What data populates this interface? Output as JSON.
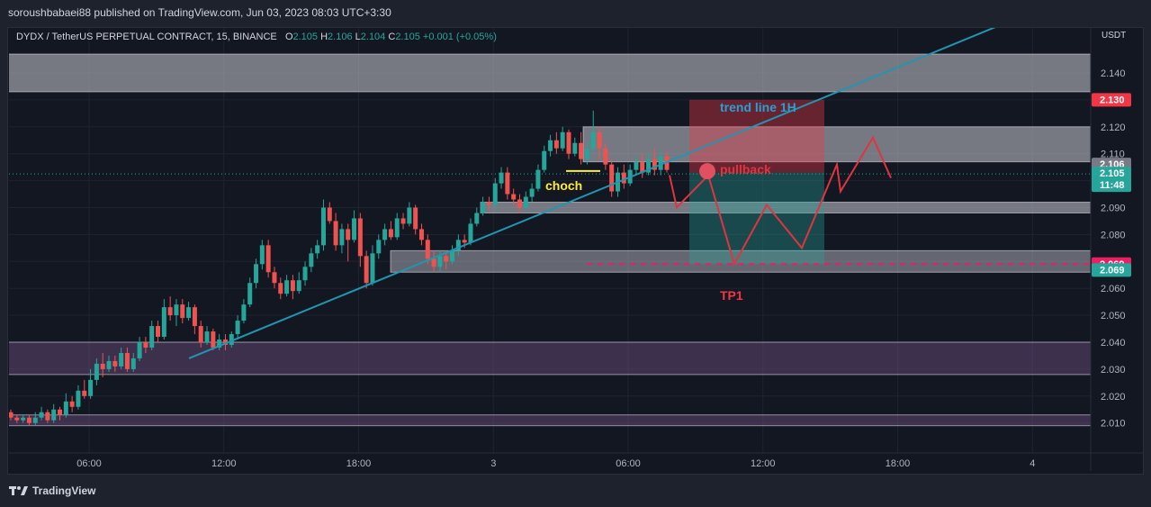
{
  "header": {
    "publish_line": "soroushbabaei88 published on TradingView.com, Jun 03, 2023 08:03 UTC+3:30"
  },
  "legend": {
    "symbol": "DYDX / TetherUS PERPETUAL CONTRACT, 15, BINANCE",
    "o_label": "O",
    "o_value": "2.105",
    "h_label": "H",
    "h_value": "2.106",
    "l_label": "L",
    "l_value": "2.104",
    "c_label": "C",
    "c_value": "2.105",
    "change": "+0.001 (+0.05%)"
  },
  "footer": {
    "brand": "TradingView"
  },
  "chart_data": {
    "type": "candlestick",
    "currency": "USDT",
    "y_range": [
      2.009,
      2.152
    ],
    "y_ticks": [
      "2.140",
      "2.120",
      "2.110",
      "2.100",
      "2.090",
      "2.080",
      "2.060",
      "2.050",
      "2.040",
      "2.030",
      "2.020",
      "2.010"
    ],
    "x_ticks": [
      {
        "label": "06:00",
        "t": 0.0
      },
      {
        "label": "12:00",
        "t": 6.0
      },
      {
        "label": "18:00",
        "t": 12.0
      },
      {
        "label": "3",
        "t": 18.0
      },
      {
        "label": "06:00",
        "t": 24.0
      },
      {
        "label": "12:00",
        "t": 30.0
      },
      {
        "label": "18:00",
        "t": 36.0
      },
      {
        "label": "4",
        "t": 42.0
      }
    ],
    "price_badges": [
      {
        "label": "2.130",
        "price": 2.13,
        "color": "#f23645"
      },
      {
        "label": "2.106",
        "price": 2.106,
        "color": "#787b86"
      },
      {
        "label": "2.105",
        "price": 2.1025,
        "color": "#26a69a",
        "sub": "11:48"
      },
      {
        "label": "2.069",
        "price": 2.069,
        "color": "#e91e63"
      },
      {
        "label": "2.069",
        "price": 2.0668,
        "color": "#26a69a"
      }
    ],
    "candles": [
      [
        2.014,
        2.012,
        2.015,
        2.011
      ],
      [
        2.012,
        2.011,
        2.013,
        2.01
      ],
      [
        2.011,
        2.012,
        2.013,
        2.01
      ],
      [
        2.012,
        2.01,
        2.013,
        2.009
      ],
      [
        2.01,
        2.012,
        2.014,
        2.009
      ],
      [
        2.012,
        2.014,
        2.016,
        2.011
      ],
      [
        2.014,
        2.011,
        2.015,
        2.01
      ],
      [
        2.011,
        2.015,
        2.017,
        2.01
      ],
      [
        2.015,
        2.013,
        2.016,
        2.011
      ],
      [
        2.013,
        2.018,
        2.021,
        2.012
      ],
      [
        2.018,
        2.016,
        2.02,
        2.014
      ],
      [
        2.016,
        2.022,
        2.024,
        2.015
      ],
      [
        2.022,
        2.02,
        2.026,
        2.019
      ],
      [
        2.02,
        2.026,
        2.03,
        2.019
      ],
      [
        2.026,
        2.032,
        2.034,
        2.024
      ],
      [
        2.032,
        2.03,
        2.036,
        2.027
      ],
      [
        2.03,
        2.033,
        2.035,
        2.029
      ],
      [
        2.033,
        2.031,
        2.035,
        2.029
      ],
      [
        2.031,
        2.036,
        2.038,
        2.03
      ],
      [
        2.036,
        2.03,
        2.038,
        2.029
      ],
      [
        2.03,
        2.034,
        2.036,
        2.029
      ],
      [
        2.034,
        2.04,
        2.042,
        2.033
      ],
      [
        2.04,
        2.038,
        2.042,
        2.036
      ],
      [
        2.038,
        2.046,
        2.048,
        2.037
      ],
      [
        2.046,
        2.042,
        2.048,
        2.04
      ],
      [
        2.042,
        2.053,
        2.056,
        2.041
      ],
      [
        2.053,
        2.05,
        2.057,
        2.048
      ],
      [
        2.05,
        2.054,
        2.056,
        2.046
      ],
      [
        2.054,
        2.049,
        2.056,
        2.047
      ],
      [
        2.049,
        2.053,
        2.055,
        2.048
      ],
      [
        2.053,
        2.046,
        2.054,
        2.043
      ],
      [
        2.046,
        2.04,
        2.048,
        2.038
      ],
      [
        2.04,
        2.044,
        2.046,
        2.039
      ],
      [
        2.044,
        2.038,
        2.045,
        2.037
      ],
      [
        2.038,
        2.041,
        2.043,
        2.037
      ],
      [
        2.041,
        2.039,
        2.043,
        2.037
      ],
      [
        2.039,
        2.043,
        2.044,
        2.038
      ],
      [
        2.043,
        2.048,
        2.05,
        2.041
      ],
      [
        2.048,
        2.054,
        2.056,
        2.047
      ],
      [
        2.054,
        2.062,
        2.064,
        2.053
      ],
      [
        2.062,
        2.069,
        2.071,
        2.06
      ],
      [
        2.069,
        2.076,
        2.078,
        2.067
      ],
      [
        2.076,
        2.066,
        2.078,
        2.064
      ],
      [
        2.066,
        2.062,
        2.068,
        2.06
      ],
      [
        2.062,
        2.058,
        2.064,
        2.056
      ],
      [
        2.058,
        2.063,
        2.065,
        2.057
      ],
      [
        2.063,
        2.059,
        2.065,
        2.056
      ],
      [
        2.059,
        2.063,
        2.066,
        2.058
      ],
      [
        2.063,
        2.068,
        2.07,
        2.061
      ],
      [
        2.068,
        2.073,
        2.075,
        2.066
      ],
      [
        2.073,
        2.076,
        2.078,
        2.071
      ],
      [
        2.076,
        2.09,
        2.093,
        2.074
      ],
      [
        2.09,
        2.085,
        2.092,
        2.084
      ],
      [
        2.085,
        2.076,
        2.088,
        2.074
      ],
      [
        2.076,
        2.082,
        2.084,
        2.073
      ],
      [
        2.082,
        2.078,
        2.084,
        2.07
      ],
      [
        2.078,
        2.086,
        2.089,
        2.077
      ],
      [
        2.086,
        2.072,
        2.088,
        2.068
      ],
      [
        2.072,
        2.062,
        2.074,
        2.06
      ],
      [
        2.062,
        2.073,
        2.076,
        2.061
      ],
      [
        2.073,
        2.078,
        2.08,
        2.071
      ],
      [
        2.078,
        2.082,
        2.084,
        2.076
      ],
      [
        2.082,
        2.079,
        2.085,
        2.078
      ],
      [
        2.079,
        2.086,
        2.088,
        2.078
      ],
      [
        2.086,
        2.084,
        2.088,
        2.082
      ],
      [
        2.084,
        2.09,
        2.092,
        2.083
      ],
      [
        2.09,
        2.082,
        2.091,
        2.08
      ],
      [
        2.082,
        2.078,
        2.084,
        2.076
      ],
      [
        2.078,
        2.071,
        2.08,
        2.069
      ],
      [
        2.071,
        2.068,
        2.074,
        2.066
      ],
      [
        2.068,
        2.072,
        2.074,
        2.066
      ],
      [
        2.072,
        2.07,
        2.074,
        2.067
      ],
      [
        2.07,
        2.074,
        2.076,
        2.069
      ],
      [
        2.074,
        2.078,
        2.08,
        2.072
      ],
      [
        2.078,
        2.077,
        2.08,
        2.075
      ],
      [
        2.077,
        2.084,
        2.086,
        2.076
      ],
      [
        2.084,
        2.088,
        2.09,
        2.083
      ],
      [
        2.088,
        2.092,
        2.094,
        2.087
      ],
      [
        2.092,
        2.091,
        2.094,
        2.089
      ],
      [
        2.091,
        2.099,
        2.101,
        2.089
      ],
      [
        2.099,
        2.103,
        2.105,
        2.097
      ],
      [
        2.103,
        2.095,
        2.105,
        2.093
      ],
      [
        2.095,
        2.093,
        2.097,
        2.091
      ],
      [
        2.093,
        2.09,
        2.095,
        2.088
      ],
      [
        2.09,
        2.094,
        2.096,
        2.089
      ],
      [
        2.094,
        2.097,
        2.099,
        2.092
      ],
      [
        2.097,
        2.104,
        2.106,
        2.096
      ],
      [
        2.104,
        2.111,
        2.113,
        2.103
      ],
      [
        2.111,
        2.115,
        2.117,
        2.109
      ],
      [
        2.115,
        2.112,
        2.118,
        2.11
      ],
      [
        2.112,
        2.118,
        2.12,
        2.111
      ],
      [
        2.118,
        2.11,
        2.119,
        2.108
      ],
      [
        2.11,
        2.114,
        2.116,
        2.109
      ],
      [
        2.114,
        2.108,
        2.118,
        2.106
      ],
      [
        2.108,
        2.112,
        2.115,
        2.106
      ],
      [
        2.112,
        2.118,
        2.126,
        2.11
      ],
      [
        2.118,
        2.112,
        2.12,
        2.108
      ],
      [
        2.112,
        2.106,
        2.114,
        2.104
      ],
      [
        2.106,
        2.096,
        2.108,
        2.094
      ],
      [
        2.096,
        2.103,
        2.105,
        2.094
      ],
      [
        2.103,
        2.099,
        2.106,
        2.097
      ],
      [
        2.099,
        2.104,
        2.106,
        2.098
      ],
      [
        2.104,
        2.107,
        2.109,
        2.102
      ],
      [
        2.107,
        2.103,
        2.11,
        2.101
      ],
      [
        2.103,
        2.108,
        2.11,
        2.102
      ],
      [
        2.108,
        2.104,
        2.112,
        2.102
      ],
      [
        2.104,
        2.109,
        2.111,
        2.102
      ],
      [
        2.109,
        2.104,
        2.111,
        2.103
      ]
    ],
    "zones": [
      {
        "name": "top-supply",
        "p_top": 2.147,
        "p_bot": 2.133,
        "x1": 2,
        "x2": 1212,
        "color": "rgba(200,200,210,0.55)"
      },
      {
        "name": "mid-resistance",
        "p_top": 2.12,
        "p_bot": 2.107,
        "x1": 648,
        "x2": 1212,
        "color": "rgba(200,200,210,0.55)"
      },
      {
        "name": "mid-support",
        "p_top": 2.092,
        "p_bot": 2.088,
        "x1": 534,
        "x2": 1212,
        "color": "rgba(200,200,210,0.55)"
      },
      {
        "name": "lower-demand",
        "p_top": 2.074,
        "p_bot": 2.066,
        "x1": 434,
        "x2": 1212,
        "color": "rgba(200,200,210,0.45)"
      },
      {
        "name": "bottom-demand",
        "p_top": 2.04,
        "p_bot": 2.028,
        "x1": 2,
        "x2": 1212,
        "color": "rgba(110,80,130,0.45)"
      },
      {
        "name": "floor-zone",
        "p_top": 2.013,
        "p_bot": 2.009,
        "x1": 2,
        "x2": 1212,
        "color": "rgba(110,80,130,0.45)"
      }
    ],
    "position": {
      "entry": 2.103,
      "stop": 2.13,
      "target": 2.069
    },
    "labels": {
      "trend_line": "trend line 1H",
      "pullback": "pullback",
      "choch": "choch",
      "tp1": "TP1"
    },
    "projection": [
      [
        744,
        2.102
      ],
      [
        752,
        2.09
      ],
      [
        787,
        2.102
      ],
      [
        816,
        2.069
      ],
      [
        852,
        2.091
      ],
      [
        891,
        2.075
      ],
      [
        930,
        2.106
      ],
      [
        934,
        2.096
      ],
      [
        970,
        2.116
      ],
      [
        990,
        2.101
      ]
    ],
    "trend_line": [
      [
        210,
        2.034
      ],
      [
        1135,
        2.161
      ]
    ],
    "last_price_line": 2.1025,
    "target_line": 2.069
  }
}
